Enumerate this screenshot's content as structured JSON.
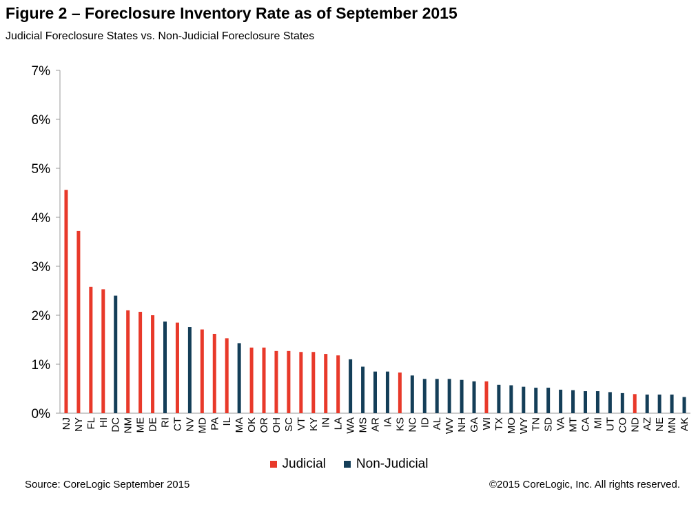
{
  "title": "Figure 2 – Foreclosure Inventory Rate as of September 2015",
  "subtitle": "Judicial Foreclosure States vs. Non-Judicial Foreclosure States",
  "source": "Source: CoreLogic  September 2015",
  "copyright": "©2015 CoreLogic, Inc. All rights reserved.",
  "colors": {
    "Judicial": "#e8392a",
    "Non-Judicial": "#143e58",
    "axis": "#999999"
  },
  "chart_data": {
    "type": "bar",
    "title": "Figure 2 – Foreclosure Inventory Rate as of September 2015",
    "subtitle": "Judicial Foreclosure States vs. Non-Judicial Foreclosure States",
    "xlabel": "",
    "ylabel": "",
    "ylim": [
      0,
      7
    ],
    "yticks": [
      "0%",
      "1%",
      "2%",
      "3%",
      "4%",
      "5%",
      "6%",
      "7%"
    ],
    "grid": false,
    "legend_position": "bottom",
    "legend": [
      "Judicial",
      "Non-Judicial"
    ],
    "categories": [
      "NJ",
      "NY",
      "FL",
      "HI",
      "DC",
      "NM",
      "ME",
      "DE",
      "RI",
      "CT",
      "NV",
      "MD",
      "PA",
      "IL",
      "MA",
      "OK",
      "OR",
      "OH",
      "SC",
      "VT",
      "KY",
      "IN",
      "LA",
      "WA",
      "MS",
      "AR",
      "IA",
      "KS",
      "NC",
      "ID",
      "AL",
      "WV",
      "NH",
      "GA",
      "WI",
      "TX",
      "MO",
      "WY",
      "TN",
      "SD",
      "VA",
      "MT",
      "CA",
      "MI",
      "UT",
      "CO",
      "ND",
      "AZ",
      "NE",
      "MN",
      "AK"
    ],
    "values": [
      4.56,
      3.72,
      2.58,
      2.53,
      2.4,
      2.1,
      2.07,
      2.0,
      1.87,
      1.85,
      1.76,
      1.71,
      1.62,
      1.53,
      1.43,
      1.34,
      1.34,
      1.27,
      1.27,
      1.25,
      1.25,
      1.21,
      1.18,
      1.1,
      0.95,
      0.85,
      0.85,
      0.83,
      0.77,
      0.7,
      0.7,
      0.7,
      0.68,
      0.65,
      0.65,
      0.58,
      0.57,
      0.54,
      0.52,
      0.52,
      0.48,
      0.47,
      0.45,
      0.45,
      0.43,
      0.41,
      0.39,
      0.38,
      0.38,
      0.38,
      0.33
    ],
    "series_type": [
      "Judicial",
      "Judicial",
      "Judicial",
      "Judicial",
      "Non-Judicial",
      "Judicial",
      "Judicial",
      "Judicial",
      "Non-Judicial",
      "Judicial",
      "Non-Judicial",
      "Judicial",
      "Judicial",
      "Judicial",
      "Non-Judicial",
      "Judicial",
      "Judicial",
      "Judicial",
      "Judicial",
      "Judicial",
      "Judicial",
      "Judicial",
      "Judicial",
      "Non-Judicial",
      "Non-Judicial",
      "Non-Judicial",
      "Non-Judicial",
      "Judicial",
      "Non-Judicial",
      "Non-Judicial",
      "Non-Judicial",
      "Non-Judicial",
      "Non-Judicial",
      "Non-Judicial",
      "Judicial",
      "Non-Judicial",
      "Non-Judicial",
      "Non-Judicial",
      "Non-Judicial",
      "Non-Judicial",
      "Non-Judicial",
      "Non-Judicial",
      "Non-Judicial",
      "Non-Judicial",
      "Non-Judicial",
      "Non-Judicial",
      "Judicial",
      "Non-Judicial",
      "Non-Judicial",
      "Non-Judicial",
      "Non-Judicial"
    ]
  }
}
